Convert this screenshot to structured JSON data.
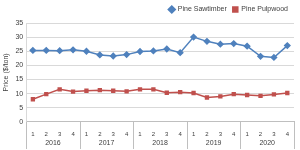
{
  "chart_data": {
    "type": "line",
    "y_label": "Price ($/ton)",
    "categories": [
      "1",
      "2",
      "3",
      "4",
      "1",
      "2",
      "3",
      "4",
      "1",
      "2",
      "3",
      "4",
      "1",
      "2",
      "3",
      "4",
      "1",
      "2",
      "3",
      "4"
    ],
    "category_groups": [
      "2016",
      "2017",
      "2018",
      "2019",
      "2020"
    ],
    "series": [
      {
        "name": "Pine Sawtimber",
        "color": "#4f81bd",
        "marker": "diamond",
        "line_style": "solid",
        "values": [
          25.3,
          25.3,
          25.2,
          25.5,
          25.0,
          23.7,
          23.3,
          23.8,
          24.9,
          25.1,
          25.8,
          24.5,
          30.0,
          28.5,
          27.5,
          27.7,
          26.8,
          23.2,
          22.8,
          27.0
        ]
      },
      {
        "name": "Pine Pulpwood",
        "color": "#c0504d",
        "marker": "square",
        "line_style": "solid",
        "values": [
          8.0,
          9.8,
          11.5,
          10.7,
          11.0,
          11.2,
          11.0,
          10.8,
          11.5,
          11.5,
          10.3,
          10.5,
          10.2,
          8.6,
          9.0,
          9.8,
          9.5,
          9.2,
          9.7,
          10.2
        ]
      }
    ],
    "ylim": [
      0,
      35
    ],
    "yticks": [
      0,
      5,
      10,
      15,
      20,
      25,
      30,
      35
    ],
    "grid": true,
    "legend": "upper right"
  }
}
